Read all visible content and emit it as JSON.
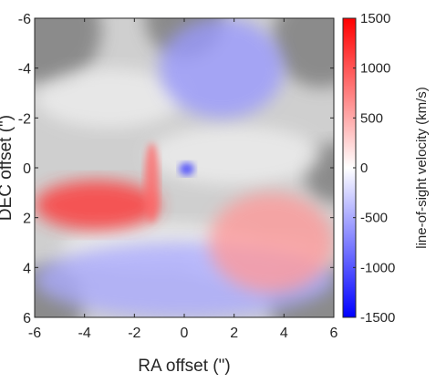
{
  "chart_data": {
    "type": "heatmap",
    "xlabel": "RA offset (\")",
    "ylabel": "DEC offset (\")",
    "xlim": [
      -6,
      6
    ],
    "ylim": [
      6,
      -6
    ],
    "x_ticks": [
      {
        "value": -6,
        "label": "-6"
      },
      {
        "value": -4,
        "label": "-4"
      },
      {
        "value": -2,
        "label": "-2"
      },
      {
        "value": 0,
        "label": "0"
      },
      {
        "value": 2,
        "label": "2"
      },
      {
        "value": 4,
        "label": "4"
      },
      {
        "value": 6,
        "label": "6"
      }
    ],
    "y_ticks": [
      {
        "value": -6,
        "label": "-6"
      },
      {
        "value": -4,
        "label": "-4"
      },
      {
        "value": -2,
        "label": "-2"
      },
      {
        "value": 0,
        "label": "0"
      },
      {
        "value": 2,
        "label": "2"
      },
      {
        "value": 4,
        "label": "4"
      },
      {
        "value": 6,
        "label": "6"
      }
    ],
    "colorbar": {
      "label": "line-of-sight velocity (km/s)",
      "min": -1500,
      "max": 1500,
      "colors": [
        "#0000ff",
        "#ffffff",
        "#ff0000"
      ],
      "ticks": [
        {
          "value": 1500,
          "label": "1500"
        },
        {
          "value": 1000,
          "label": "1000"
        },
        {
          "value": 500,
          "label": "500"
        },
        {
          "value": 0,
          "label": "0"
        },
        {
          "value": -500,
          "label": "-500"
        },
        {
          "value": -1000,
          "label": "-1000"
        },
        {
          "value": -1500,
          "label": "-1500"
        }
      ]
    },
    "features": [
      {
        "name": "southeast-red-band",
        "x": [
          -6,
          -1
        ],
        "y": [
          0.5,
          2.5
        ],
        "velocity": 1200
      },
      {
        "name": "vertical-red-filament",
        "x": [
          -1.6,
          -1
        ],
        "y": [
          -1,
          2.2
        ],
        "velocity": 900
      },
      {
        "name": "northern-blue-region",
        "x": [
          -1,
          4
        ],
        "y": [
          -6,
          -2
        ],
        "velocity": -600
      },
      {
        "name": "southern-blue-region",
        "x": [
          -6,
          6
        ],
        "y": [
          3,
          6
        ],
        "velocity": -500
      },
      {
        "name": "western-red-region",
        "x": [
          1,
          6
        ],
        "y": [
          1,
          5
        ],
        "velocity": 600
      },
      {
        "name": "center-blue-spot",
        "x": [
          -0.2,
          0.4
        ],
        "y": [
          -0.2,
          0.3
        ],
        "velocity": -1200
      }
    ]
  }
}
